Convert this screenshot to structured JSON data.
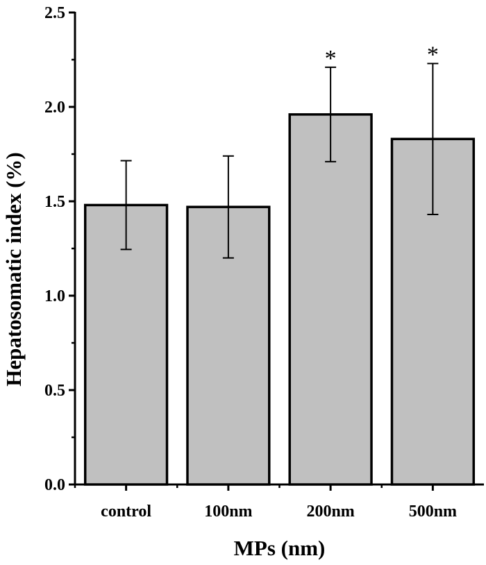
{
  "chart_data": {
    "type": "bar",
    "title": "",
    "xlabel": "MPs (nm)",
    "ylabel": "Hepatosomatic index (%)",
    "categories": [
      "control",
      "100nm",
      "200nm",
      "500nm"
    ],
    "values": [
      1.48,
      1.47,
      1.96,
      1.83
    ],
    "errors": [
      0.235,
      0.27,
      0.25,
      0.4
    ],
    "annotations": [
      "",
      "",
      "*",
      "*"
    ],
    "ylim": [
      0.0,
      2.5
    ],
    "yticks": [
      "0.0",
      "0.5",
      "1.0",
      "1.5",
      "2.0",
      "2.5"
    ],
    "grid": false,
    "colors": {
      "bar_fill": "#c0c0c0",
      "bar_stroke": "#000000",
      "axis": "#000000"
    }
  }
}
